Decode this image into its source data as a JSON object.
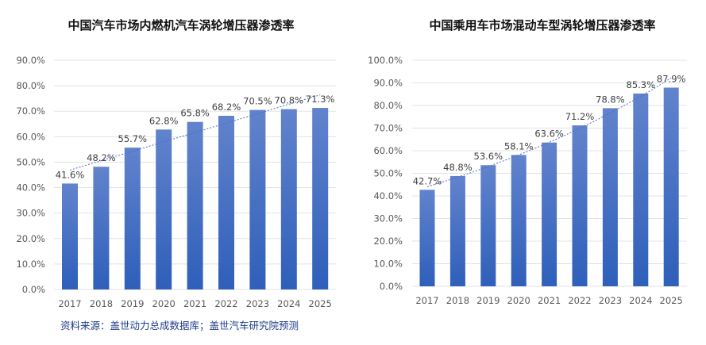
{
  "chart_data": [
    {
      "type": "bar",
      "title": "中国汽车市场内燃机汽车涡轮增压器渗透率",
      "categories": [
        "2017",
        "2018",
        "2019",
        "2020",
        "2021",
        "2022",
        "2023",
        "2024",
        "2025"
      ],
      "values": [
        41.6,
        48.2,
        55.7,
        62.8,
        65.8,
        68.2,
        70.5,
        70.8,
        71.3
      ],
      "value_labels": [
        "41.6%",
        "48.2%",
        "55.7%",
        "62.8%",
        "65.8%",
        "68.2%",
        "70.5%",
        "70.8%",
        "71.3%"
      ],
      "ylim": [
        0,
        90
      ],
      "yticks": [
        "0.0%",
        "10.0%",
        "20.0%",
        "30.0%",
        "40.0%",
        "50.0%",
        "60.0%",
        "70.0%",
        "80.0%",
        "90.0%"
      ],
      "trendline": "linear",
      "grid": true,
      "xlabel": "",
      "ylabel": ""
    },
    {
      "type": "bar",
      "title": "中国乘用车市场混动车型涡轮增压器渗透率",
      "categories": [
        "2017",
        "2018",
        "2019",
        "2020",
        "2021",
        "2022",
        "2023",
        "2024",
        "2025"
      ],
      "values": [
        42.7,
        48.8,
        53.6,
        58.1,
        63.6,
        71.2,
        78.8,
        85.3,
        87.9
      ],
      "value_labels": [
        "42.7%",
        "48.8%",
        "53.6%",
        "58.1%",
        "63.6%",
        "71.2%",
        "78.8%",
        "85.3%",
        "87.9%"
      ],
      "ylim": [
        0,
        100
      ],
      "yticks": [
        "0.0%",
        "10.0%",
        "20.0%",
        "30.0%",
        "40.0%",
        "50.0%",
        "60.0%",
        "70.0%",
        "80.0%",
        "90.0%",
        "100.0%"
      ],
      "trendline": "exponential",
      "grid": true,
      "xlabel": "",
      "ylabel": ""
    }
  ],
  "source": "资料来源：盖世动力总成数据库；盖世汽车研究院预测",
  "colors": {
    "bar_top": "#6283cc",
    "bar_bottom": "#2e5fba",
    "grid": "#e3e3e3",
    "trend": "#4a6fc4"
  }
}
